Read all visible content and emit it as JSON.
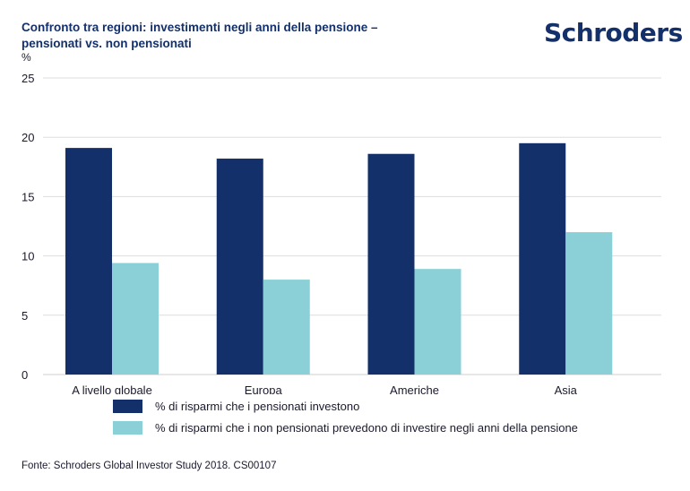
{
  "header": {
    "title": "Confronto tra regioni: investimenti negli anni della pensione – pensionati vs. non pensionati",
    "logo_text": "Schroders"
  },
  "footer": {
    "source": "Fonte: Schroders Global Investor Study 2018. CS00107"
  },
  "chart_data": {
    "type": "bar",
    "title": "Confronto tra regioni: investimenti negli anni della pensione – pensionati vs. non pensionati",
    "ylabel": "%",
    "xlabel": "",
    "ylim": [
      0,
      25
    ],
    "yticks": [
      0,
      5,
      10,
      15,
      20,
      25
    ],
    "grid": true,
    "legend_position": "bottom",
    "categories": [
      "A livello globale",
      "Europa",
      "Americhe",
      "Asia"
    ],
    "series": [
      {
        "name": "% di risparmi che i pensionati investono",
        "color": "#14306b",
        "values": [
          19.1,
          18.2,
          18.6,
          19.5
        ]
      },
      {
        "name": "% di risparmi che i non pensionati prevedono di investire negli anni della pensione",
        "color": "#8ad0d6",
        "values": [
          9.4,
          8.0,
          8.9,
          12.0
        ]
      }
    ]
  }
}
